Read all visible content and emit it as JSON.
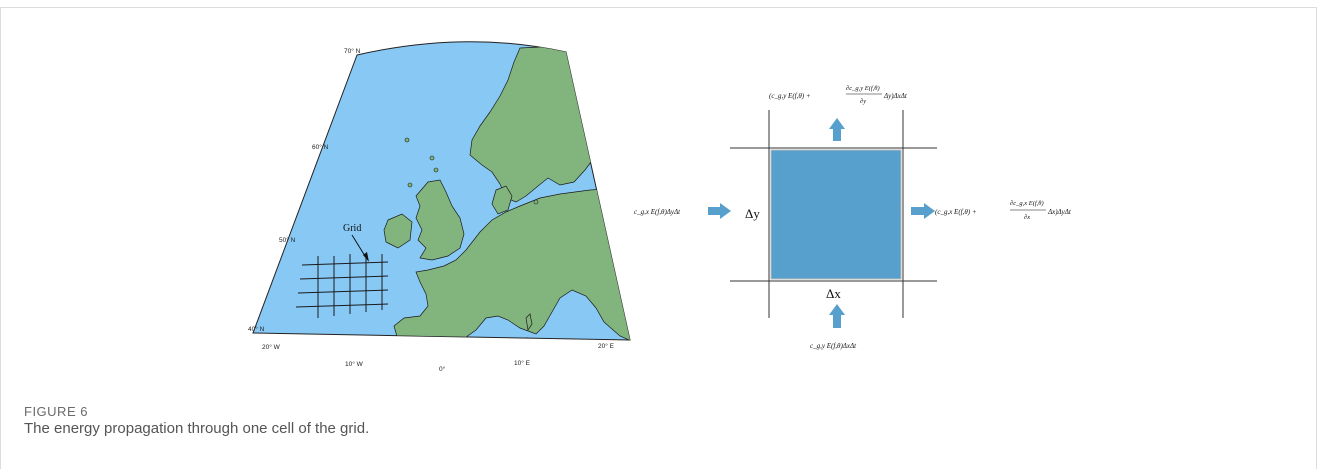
{
  "figure": {
    "label": "FIGURE 6",
    "caption": "The energy propagation through one cell of the grid."
  },
  "map": {
    "lat_labels": [
      "70° N",
      "60° N",
      "50° N",
      "40° N"
    ],
    "lon_labels": [
      "20° W",
      "10° W",
      "0°",
      "10° E",
      "20° E"
    ],
    "grid_label": "Grid",
    "colors": {
      "sea": "#88c8f5",
      "land": "#82b47e",
      "outline": "#1a1a1a"
    }
  },
  "cell": {
    "dx_label": "Δx",
    "dy_label": "Δy",
    "flux_in_x": "c_g,x E(f,θ)ΔyΔt",
    "flux_in_y": "c_g,y E(f,θ)ΔxΔt",
    "flux_out_x_prefix": "(c_g,x E(f,θ) +",
    "flux_out_x_num": "∂c_g,x E(f,θ)",
    "flux_out_x_den": "∂x",
    "flux_out_x_suffix": "Δx)ΔyΔt",
    "flux_out_y_prefix": "(c_g,y E(f,θ) +",
    "flux_out_y_num": "∂c_g,y E(f,θ)",
    "flux_out_y_den": "∂y",
    "flux_out_y_suffix": "Δy)ΔxΔt",
    "colors": {
      "cell": "#57a0ce",
      "arrow": "#57a0ce",
      "line": "#333333"
    }
  }
}
